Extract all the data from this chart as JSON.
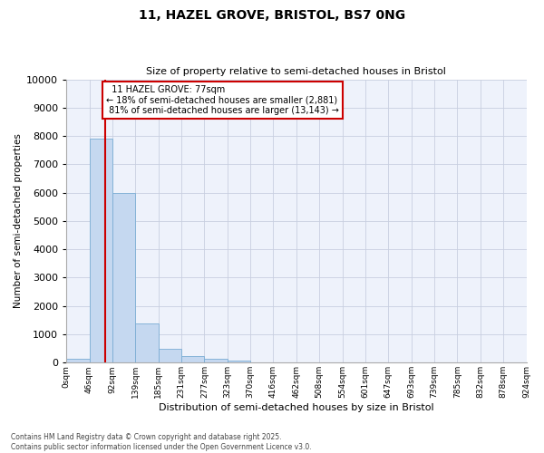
{
  "title": "11, HAZEL GROVE, BRISTOL, BS7 0NG",
  "subtitle": "Size of property relative to semi-detached houses in Bristol",
  "xlabel": "Distribution of semi-detached houses by size in Bristol",
  "ylabel": "Number of semi-detached properties",
  "bar_color": "#c5d8f0",
  "bar_edge_color": "#7aadd4",
  "background_color": "#eef2fb",
  "grid_color": "#c8cfe0",
  "annotation_box_color": "#cc0000",
  "property_line_color": "#cc0000",
  "property_value": 77,
  "property_label": "11 HAZEL GROVE: 77sqm",
  "pct_smaller": "18% of semi-detached houses are smaller (2,881)",
  "pct_larger": "81% of semi-detached houses are larger (13,143)",
  "bins": [
    0,
    46,
    92,
    139,
    185,
    231,
    277,
    323,
    370,
    416,
    462,
    508,
    554,
    601,
    647,
    693,
    739,
    785,
    832,
    878,
    924
  ],
  "counts": [
    150,
    7900,
    6000,
    1400,
    500,
    220,
    140,
    70,
    0,
    0,
    0,
    0,
    0,
    0,
    0,
    0,
    0,
    0,
    0,
    0
  ],
  "tick_labels": [
    "0sqm",
    "46sqm",
    "92sqm",
    "139sqm",
    "185sqm",
    "231sqm",
    "277sqm",
    "323sqm",
    "370sqm",
    "416sqm",
    "462sqm",
    "508sqm",
    "554sqm",
    "601sqm",
    "647sqm",
    "693sqm",
    "739sqm",
    "785sqm",
    "832sqm",
    "878sqm",
    "924sqm"
  ],
  "ylim": [
    0,
    10000
  ],
  "yticks": [
    0,
    1000,
    2000,
    3000,
    4000,
    5000,
    6000,
    7000,
    8000,
    9000,
    10000
  ],
  "footer_line1": "Contains HM Land Registry data © Crown copyright and database right 2025.",
  "footer_line2": "Contains public sector information licensed under the Open Government Licence v3.0."
}
